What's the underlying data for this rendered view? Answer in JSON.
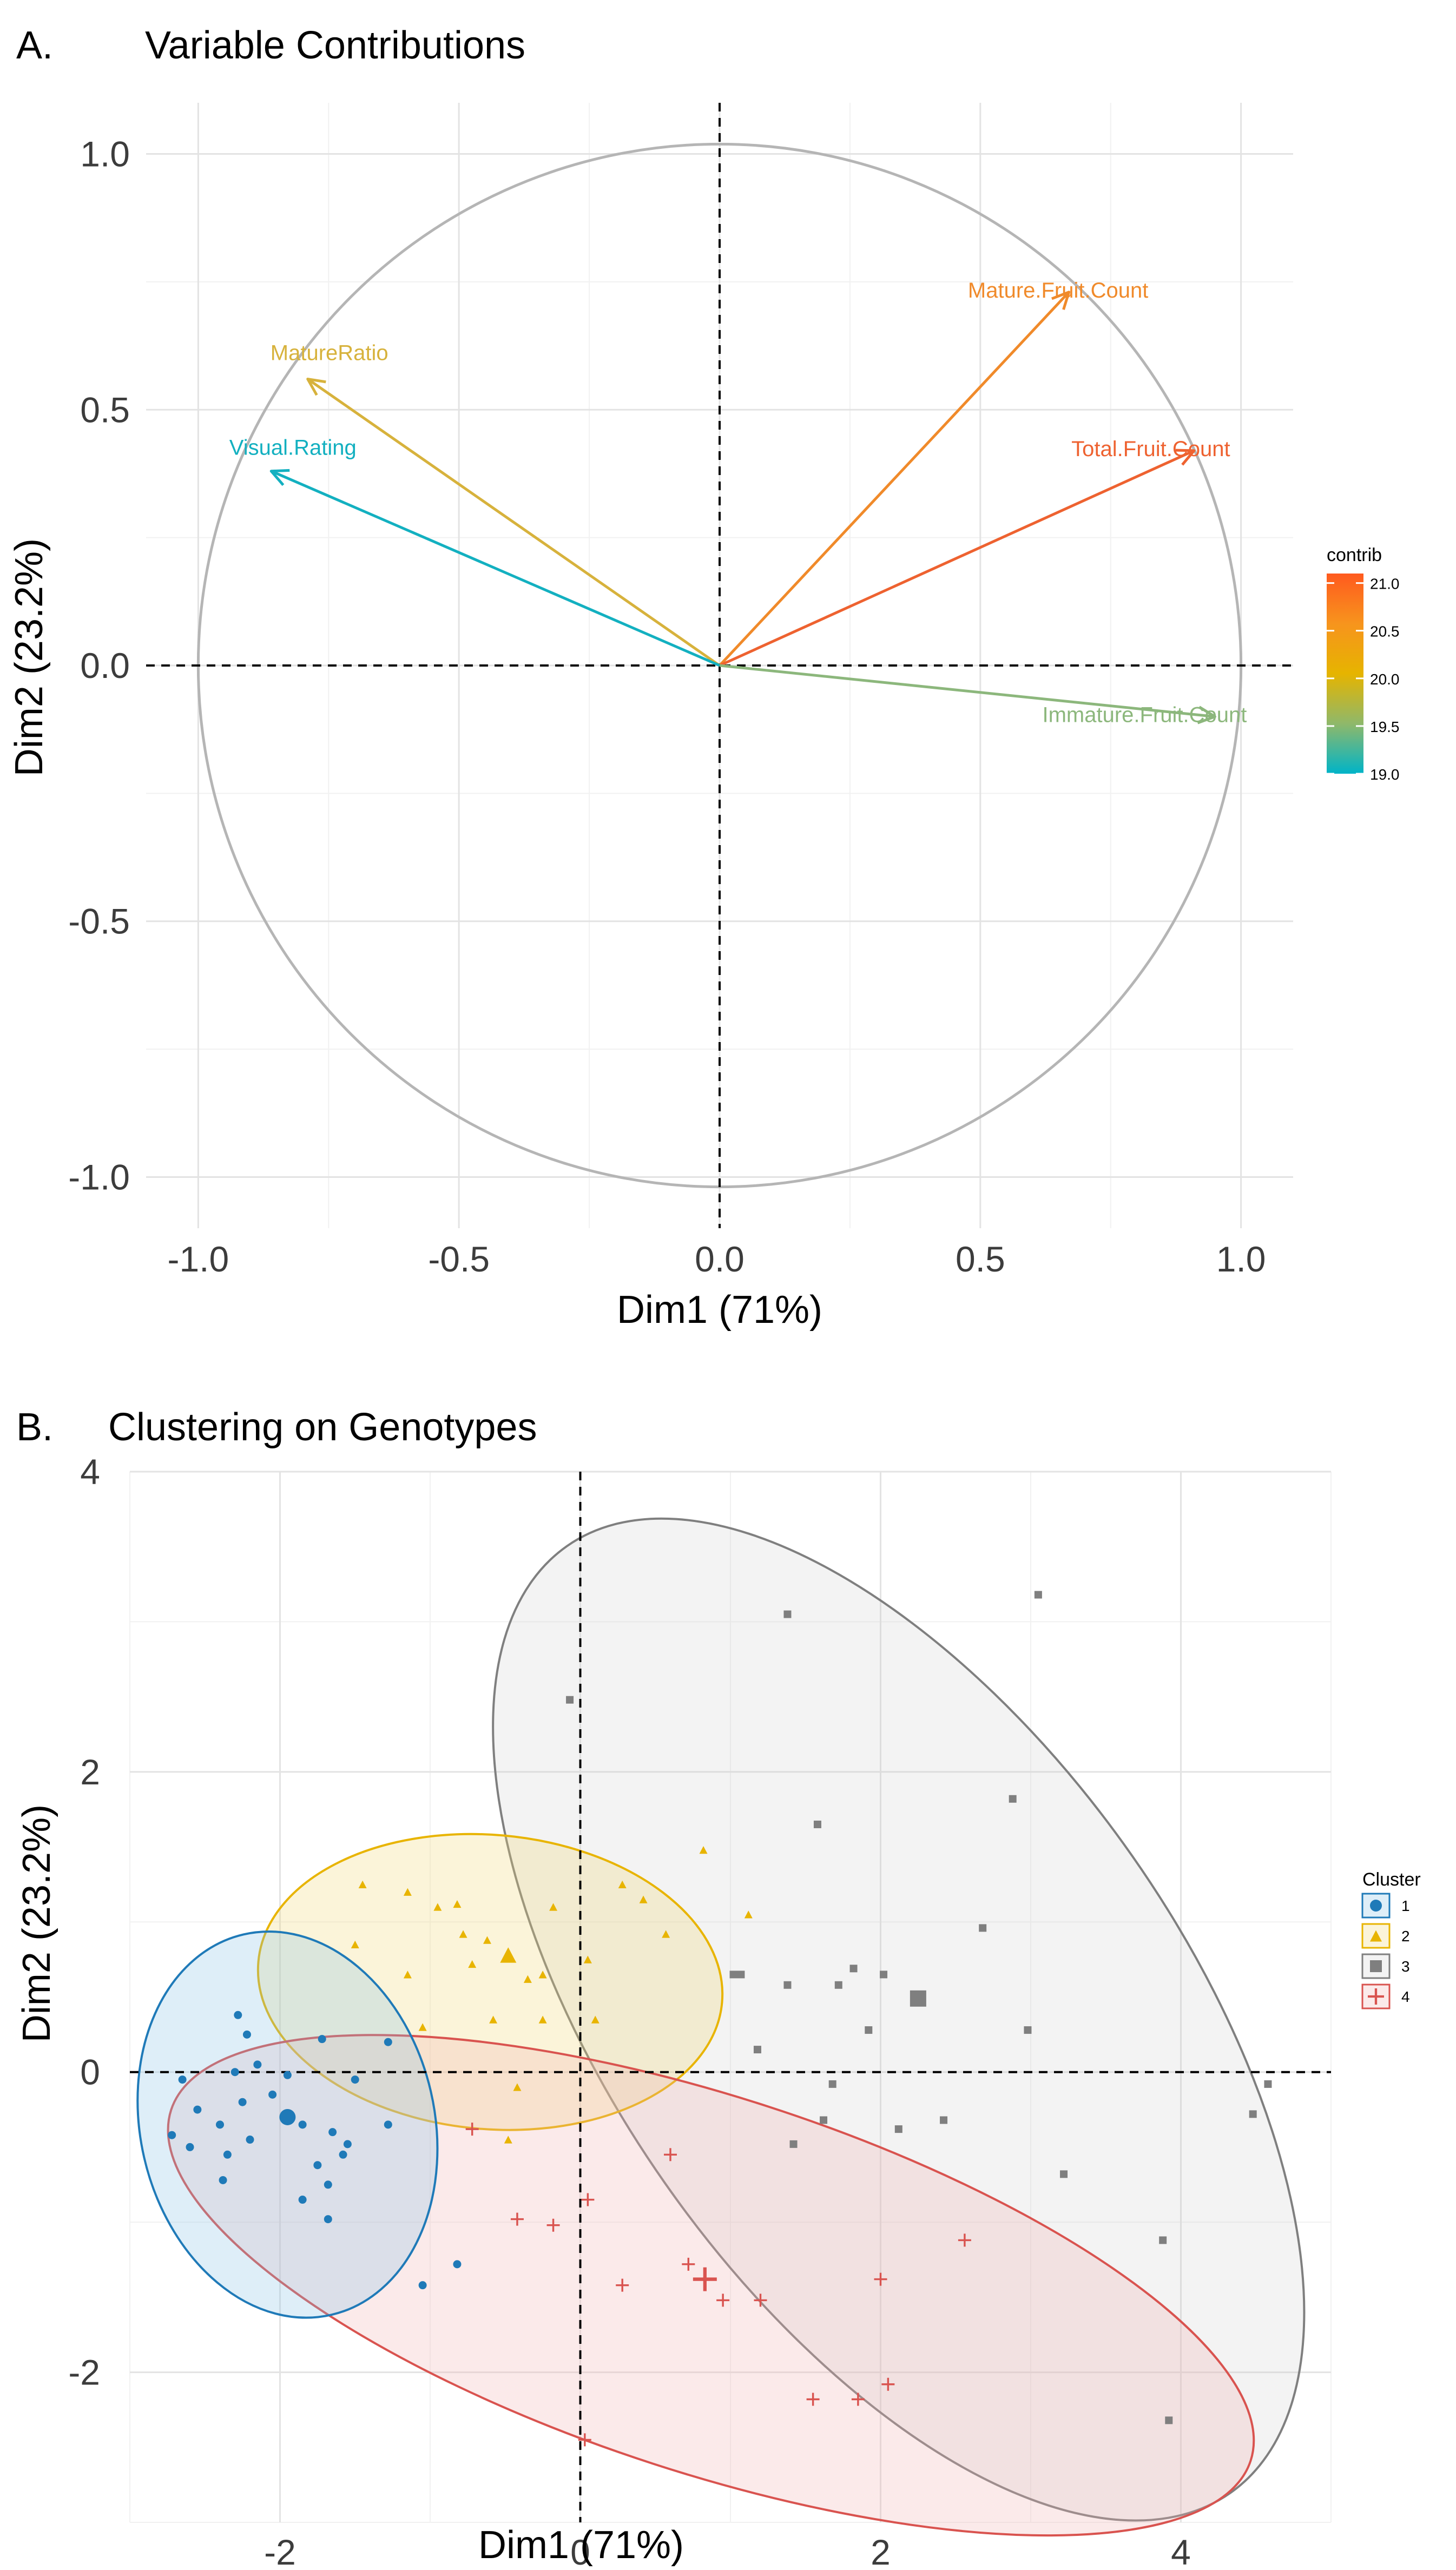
{
  "chart_data": [
    {
      "type": "pca-variable-plot",
      "panel": "A.",
      "title": "Variable Contributions",
      "xlabel": "Dim1 (71%)",
      "ylabel": "Dim2 (23.2%)",
      "xlim": [
        -1.1,
        1.1
      ],
      "ylim": [
        -1.1,
        1.1
      ],
      "xticks": [
        -1.0,
        -0.5,
        0.0,
        0.5,
        1.0
      ],
      "yticks": [
        -1.0,
        -0.5,
        0.0,
        0.5,
        1.0
      ],
      "xtick_labels": [
        "-1.0",
        "-0.5",
        "0.0",
        "0.5",
        "1.0"
      ],
      "ytick_labels": [
        "-1.0",
        "-0.5",
        "0.0",
        "0.5",
        "1.0"
      ],
      "correlation_circle_radius": 1.0,
      "variables": [
        {
          "name": "Mature.Fruit.Count",
          "x": 0.67,
          "y": 0.73,
          "contrib": 20.3,
          "color": "#f08a2a"
        },
        {
          "name": "Total.Fruit.Count",
          "x": 0.91,
          "y": 0.42,
          "contrib": 21.0,
          "color": "#ee6230"
        },
        {
          "name": "Immature.Fruit.Count",
          "x": 0.95,
          "y": -0.1,
          "contrib": 19.2,
          "color": "#8cb77c"
        },
        {
          "name": "MatureRatio",
          "x": -0.79,
          "y": 0.56,
          "contrib": 19.8,
          "color": "#d7b23c"
        },
        {
          "name": "Visual.Rating",
          "x": -0.86,
          "y": 0.38,
          "contrib": 19.0,
          "color": "#13b0c0"
        }
      ],
      "legend": {
        "title": "contrib",
        "min": 19.0,
        "max": 21.1,
        "labels": [
          "21.0",
          "20.5",
          "20.0",
          "19.5",
          "19.0"
        ],
        "label_values": [
          21.0,
          20.5,
          20.0,
          19.5,
          19.0
        ],
        "gradient_colors": [
          "#ff5a1e",
          "#f7941d",
          "#e6b400",
          "#8fb86a",
          "#00b4c8"
        ]
      }
    },
    {
      "type": "scatter",
      "panel": "B.",
      "title": "Clustering on Genotypes",
      "xlabel": "Dim1 (71%)",
      "ylabel": "Dim2 (23.2%)",
      "xlim": [
        -3.0,
        5.0
      ],
      "ylim": [
        -3.0,
        4.0
      ],
      "xticks": [
        -2,
        0,
        2,
        4
      ],
      "yticks": [
        -2,
        0,
        2,
        4
      ],
      "xtick_labels": [
        "-2",
        "0",
        "2",
        "4"
      ],
      "ytick_labels": [
        "-2",
        "0",
        "2",
        "4"
      ],
      "legend": {
        "title": "Cluster",
        "labels": [
          "1",
          "2",
          "3",
          "4"
        ]
      },
      "series": [
        {
          "name": "1",
          "shape": "circle",
          "color": "#1f7ab8",
          "fill": "rgba(135,195,230,0.28)",
          "center": [
            -1.95,
            -0.3
          ],
          "ellipse": {
            "cx": -1.95,
            "cy": -0.35,
            "rx": 1.3,
            "ry": 0.98,
            "angle_deg": -77
          },
          "points": [
            [
              -2.65,
              -0.05
            ],
            [
              -2.55,
              -0.25
            ],
            [
              -2.72,
              -0.42
            ],
            [
              -2.6,
              -0.5
            ],
            [
              -2.4,
              -0.35
            ],
            [
              -2.35,
              -0.55
            ],
            [
              -2.38,
              -0.72
            ],
            [
              -2.28,
              0.38
            ],
            [
              -2.22,
              0.25
            ],
            [
              -2.3,
              0.0
            ],
            [
              -2.25,
              -0.2
            ],
            [
              -2.2,
              -0.45
            ],
            [
              -2.15,
              0.05
            ],
            [
              -2.05,
              -0.15
            ],
            [
              -1.95,
              -0.02
            ],
            [
              -1.85,
              -0.35
            ],
            [
              -1.75,
              -0.62
            ],
            [
              -1.68,
              -0.75
            ],
            [
              -1.72,
              0.22
            ],
            [
              -1.65,
              -0.4
            ],
            [
              -1.55,
              -0.48
            ],
            [
              -1.5,
              -0.05
            ],
            [
              -1.28,
              0.2
            ],
            [
              -1.28,
              -0.35
            ],
            [
              -1.58,
              -0.55
            ],
            [
              -1.05,
              -1.42
            ],
            [
              -0.82,
              -1.28
            ],
            [
              -1.85,
              -0.85
            ],
            [
              -1.68,
              -0.98
            ]
          ]
        },
        {
          "name": "2",
          "shape": "triangle",
          "color": "#e8b400",
          "fill": "rgba(240,215,120,0.28)",
          "center": [
            -0.48,
            0.78
          ],
          "ellipse": {
            "cx": -0.6,
            "cy": 0.6,
            "rx": 1.55,
            "ry": 0.98,
            "angle_deg": -5
          },
          "points": [
            [
              -1.45,
              1.25
            ],
            [
              -1.5,
              0.85
            ],
            [
              -1.15,
              0.65
            ],
            [
              -1.15,
              1.2
            ],
            [
              -0.95,
              1.1
            ],
            [
              -0.82,
              1.12
            ],
            [
              -0.78,
              0.92
            ],
            [
              -0.72,
              0.72
            ],
            [
              -0.62,
              0.88
            ],
            [
              -0.35,
              0.62
            ],
            [
              -0.25,
              0.35
            ],
            [
              -0.58,
              0.35
            ],
            [
              -0.42,
              -0.1
            ],
            [
              -0.48,
              -0.45
            ],
            [
              -0.25,
              0.65
            ],
            [
              -0.18,
              1.1
            ],
            [
              0.05,
              0.75
            ],
            [
              0.28,
              1.25
            ],
            [
              0.42,
              1.15
            ],
            [
              0.57,
              0.92
            ],
            [
              0.82,
              1.48
            ],
            [
              1.12,
              1.05
            ],
            [
              0.1,
              0.35
            ],
            [
              -1.05,
              0.3
            ]
          ]
        },
        {
          "name": "3",
          "shape": "square",
          "color": "#7f7f7f",
          "fill": "rgba(200,200,200,0.22)",
          "center": [
            2.25,
            0.49
          ],
          "ellipse": {
            "cx": 2.12,
            "cy": 0.35,
            "rx": 3.85,
            "ry": 1.9,
            "angle_deg": -55
          },
          "points": [
            [
              -0.07,
              2.48
            ],
            [
              1.38,
              3.05
            ],
            [
              3.05,
              3.18
            ],
            [
              1.58,
              1.65
            ],
            [
              2.88,
              1.82
            ],
            [
              1.02,
              0.65
            ],
            [
              1.07,
              0.65
            ],
            [
              1.82,
              0.69
            ],
            [
              2.02,
              0.65
            ],
            [
              2.68,
              0.96
            ],
            [
              1.38,
              0.58
            ],
            [
              1.72,
              0.58
            ],
            [
              1.92,
              0.28
            ],
            [
              1.18,
              0.15
            ],
            [
              1.68,
              -0.08
            ],
            [
              2.98,
              0.28
            ],
            [
              1.62,
              -0.32
            ],
            [
              2.12,
              -0.38
            ],
            [
              1.42,
              -0.48
            ],
            [
              3.22,
              -0.68
            ],
            [
              4.58,
              -0.08
            ],
            [
              4.48,
              -0.28
            ],
            [
              3.88,
              -1.12
            ],
            [
              3.92,
              -2.32
            ],
            [
              2.42,
              -0.32
            ]
          ]
        },
        {
          "name": "4",
          "shape": "plus",
          "color": "#d9534f",
          "fill": "rgba(240,180,180,0.28)",
          "center": [
            0.83,
            -1.38
          ],
          "ellipse": {
            "cx": 0.87,
            "cy": -1.42,
            "rx": 3.78,
            "ry": 1.25,
            "angle_deg": -18
          },
          "points": [
            [
              -0.72,
              -0.38
            ],
            [
              -0.42,
              -0.98
            ],
            [
              -0.18,
              -1.02
            ],
            [
              0.05,
              -0.85
            ],
            [
              0.6,
              -0.55
            ],
            [
              0.28,
              -1.42
            ],
            [
              0.03,
              -2.45
            ],
            [
              1.2,
              -1.52
            ],
            [
              1.55,
              -2.18
            ],
            [
              1.85,
              -2.18
            ],
            [
              2.05,
              -2.08
            ],
            [
              2.0,
              -1.38
            ],
            [
              2.56,
              -1.12
            ],
            [
              0.95,
              -1.52
            ],
            [
              0.72,
              -1.28
            ]
          ]
        }
      ]
    }
  ]
}
